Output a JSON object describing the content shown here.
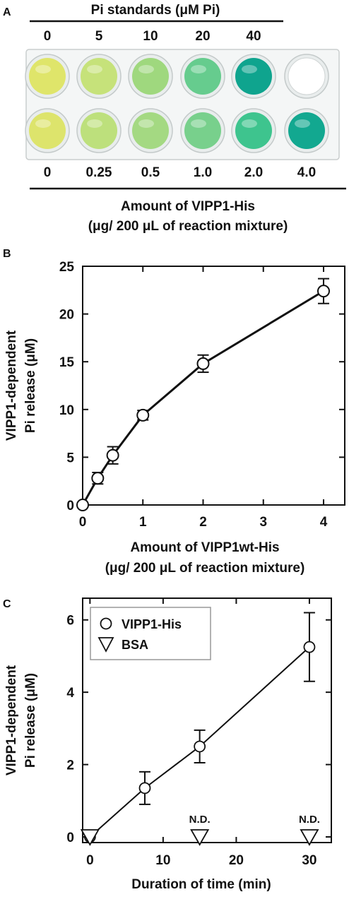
{
  "panel_a": {
    "letter": "A",
    "standards_title": "Pi standards (μM Pi)",
    "standards_labels": [
      "0",
      "5",
      "10",
      "20",
      "40"
    ],
    "amount_labels": [
      "0",
      "0.25",
      "0.5",
      "1.0",
      "2.0",
      "4.0"
    ],
    "xlabel_line1": "Amount of VIPP1-His",
    "xlabel_line2": "(μg/ 200 μL of reaction mixture)",
    "top_row_colors": [
      "#dfe56a",
      "#c6e27a",
      "#9fd87e",
      "#66cc8e",
      "#0fa48e",
      "#ffffff"
    ],
    "bottom_row_colors": [
      "#dde46c",
      "#bde07c",
      "#a4d982",
      "#78d08c",
      "#3ec48e",
      "#12a890"
    ]
  },
  "chart_data": [
    {
      "panel": "B",
      "type": "line",
      "letter": "B",
      "xlabel_line1": "Amount of VIPP1wt-His",
      "xlabel_line2": "(μg/ 200 μL of reaction mixture)",
      "ylabel_line1": "VIPP1-dependent",
      "ylabel_line2": "Pi release (μM)",
      "x_scale": "categorical",
      "x_ticks": [
        "0",
        "1",
        "2",
        "3",
        "4"
      ],
      "y_ticks": [
        "0",
        "5",
        "10",
        "15",
        "20",
        "25"
      ],
      "ylim": [
        0,
        25
      ],
      "series": [
        {
          "x": [
            0,
            0.25,
            0.5,
            1,
            2,
            4
          ],
          "y": [
            0,
            2.8,
            5.2,
            9.4,
            14.8,
            22.4
          ],
          "err": [
            0,
            0.6,
            0.9,
            0.5,
            0.9,
            1.3
          ]
        }
      ]
    },
    {
      "panel": "C",
      "type": "line",
      "letter": "C",
      "xlabel": "Duration of time (min)",
      "ylabel_line1": "VIPP1-dependent",
      "ylabel_line2": "Pi release (μM)",
      "x_ticks": [
        "0",
        "10",
        "20",
        "30"
      ],
      "y_ticks": [
        "0",
        "2",
        "4",
        "6"
      ],
      "xlim": [
        -1,
        33
      ],
      "ylim": [
        0,
        6.6
      ],
      "legend_position": "top-left",
      "series": [
        {
          "name": "VIPP1-His",
          "marker": "circle",
          "x": [
            0,
            7.5,
            15,
            30
          ],
          "y": [
            0,
            1.35,
            2.5,
            5.25
          ],
          "err": [
            0,
            0.45,
            0.45,
            0.95
          ]
        },
        {
          "name": "BSA",
          "marker": "triangle-down",
          "x": [
            0,
            15,
            30
          ],
          "y": [
            0,
            0,
            0
          ],
          "annotations": [
            "",
            "N.D.",
            "N.D."
          ]
        }
      ]
    }
  ]
}
